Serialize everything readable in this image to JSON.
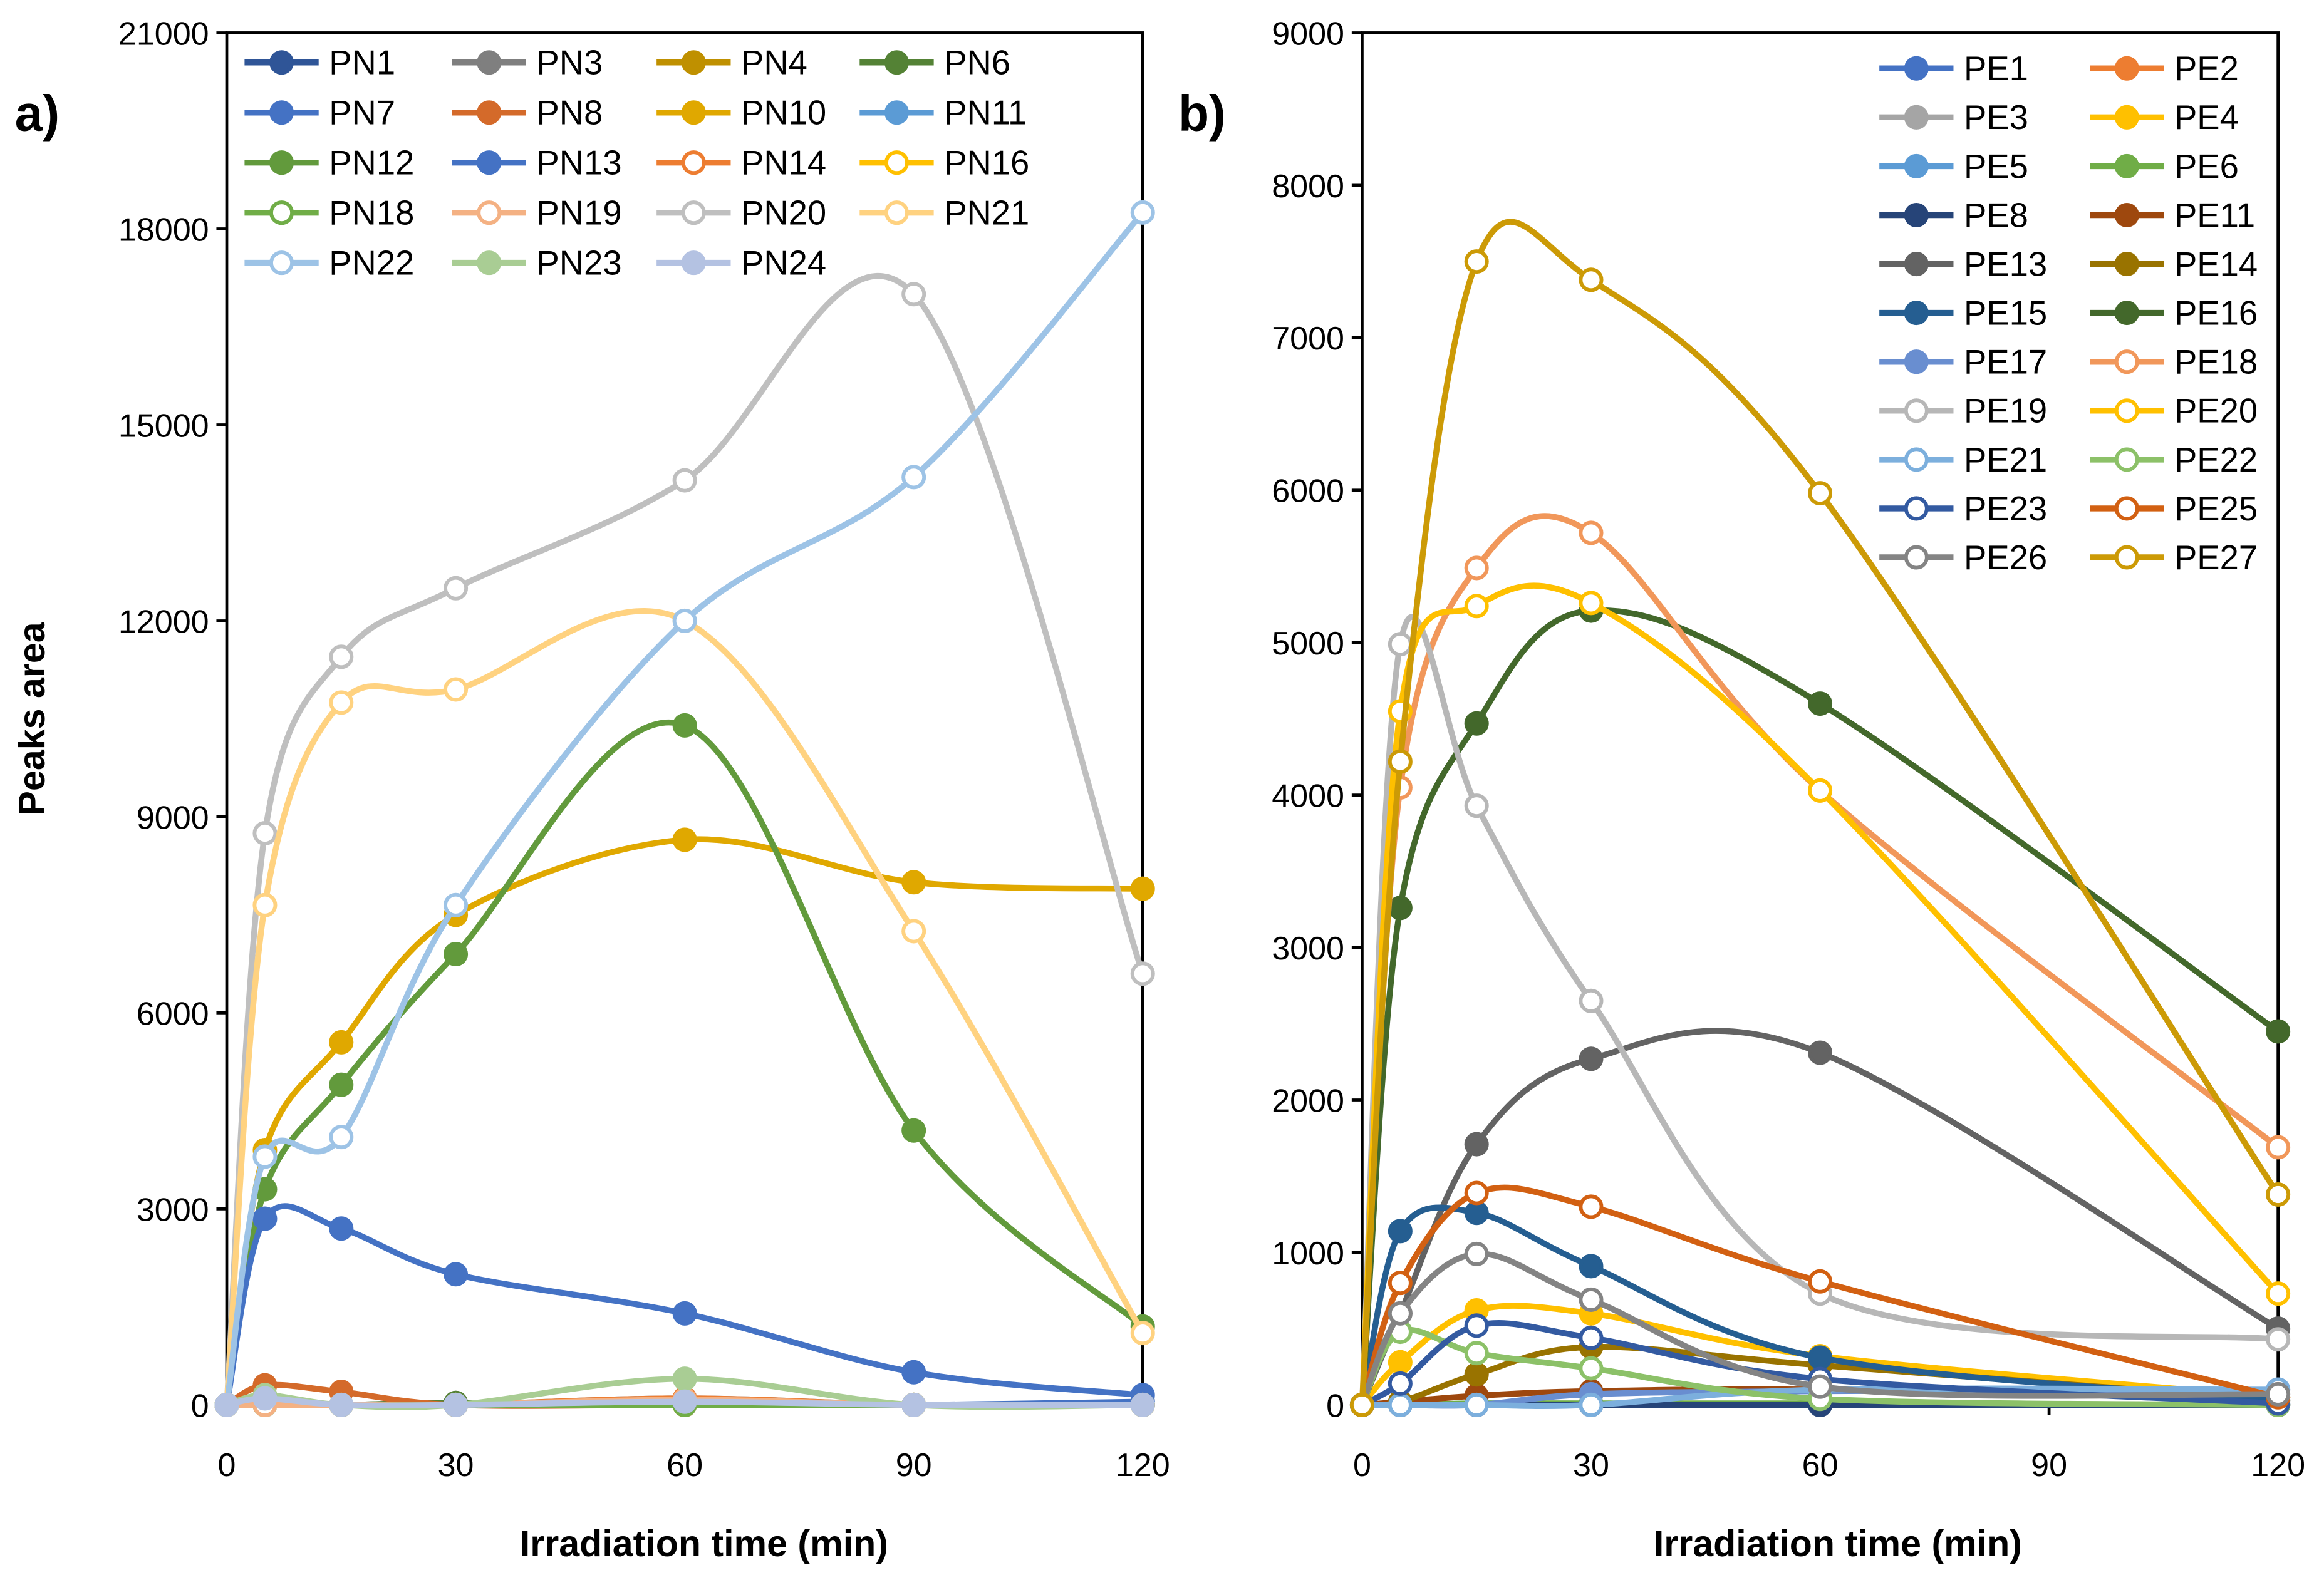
{
  "chart_data": [
    {
      "type": "line",
      "panel_label": "a)",
      "xlabel": "Irradiation time (min)",
      "ylabel": "Peaks area",
      "xlim": [
        0,
        120
      ],
      "ylim": [
        0,
        21000
      ],
      "xticks": [
        0,
        30,
        60,
        90,
        120
      ],
      "yticks": [
        0,
        3000,
        6000,
        9000,
        12000,
        15000,
        18000,
        21000
      ],
      "legend_position": "top",
      "legend_columns": 4,
      "x": [
        0,
        5,
        15,
        30,
        60,
        90,
        120
      ],
      "series": [
        {
          "name": "PN1",
          "color": "#2F5597",
          "marker": "filled",
          "values": [
            0,
            0,
            0,
            0,
            0,
            0,
            0
          ]
        },
        {
          "name": "PN3",
          "color": "#7F7F7F",
          "marker": "filled",
          "values": [
            0,
            0,
            0,
            30,
            0,
            0,
            0
          ]
        },
        {
          "name": "PN4",
          "color": "#BF9000",
          "marker": "filled",
          "values": [
            0,
            0,
            0,
            0,
            0,
            0,
            0
          ]
        },
        {
          "name": "PN6",
          "color": "#548235",
          "marker": "filled",
          "values": [
            0,
            0,
            0,
            30,
            0,
            0,
            0
          ]
        },
        {
          "name": "PN7",
          "color": "#4472C4",
          "marker": "filled",
          "values": [
            0,
            0,
            0,
            0,
            0,
            0,
            50
          ]
        },
        {
          "name": "PN8",
          "color": "#D46A2A",
          "marker": "filled",
          "values": [
            0,
            300,
            200,
            0,
            0,
            0,
            0
          ]
        },
        {
          "name": "PN10",
          "color": "#E0A800",
          "marker": "filled",
          "values": [
            0,
            3900,
            5550,
            7500,
            8650,
            8000,
            7900
          ]
        },
        {
          "name": "PN11",
          "color": "#5B9BD5",
          "marker": "filled",
          "values": [
            0,
            0,
            0,
            0,
            100,
            0,
            0
          ]
        },
        {
          "name": "PN12",
          "color": "#629A3C",
          "marker": "filled",
          "values": [
            0,
            3300,
            4900,
            6900,
            10400,
            4200,
            1200
          ]
        },
        {
          "name": "PN13",
          "color": "#4472C4",
          "marker": "filled",
          "values": [
            0,
            2850,
            2700,
            2000,
            1400,
            500,
            150
          ]
        },
        {
          "name": "PN14",
          "color": "#ED7D31",
          "marker": "open",
          "values": [
            0,
            0,
            0,
            0,
            100,
            0,
            0
          ]
        },
        {
          "name": "PN16",
          "color": "#FFC000",
          "marker": "open",
          "values": [
            0,
            0,
            0,
            0,
            0,
            0,
            0
          ]
        },
        {
          "name": "PN18",
          "color": "#70AD47",
          "marker": "open",
          "values": [
            0,
            0,
            0,
            0,
            0,
            0,
            0
          ]
        },
        {
          "name": "PN19",
          "color": "#F4B183",
          "marker": "open",
          "values": [
            0,
            0,
            0,
            0,
            80,
            0,
            0
          ]
        },
        {
          "name": "PN20",
          "color": "#BFBFBF",
          "marker": "open",
          "values": [
            0,
            8750,
            11450,
            12500,
            14150,
            17000,
            6600
          ]
        },
        {
          "name": "PN21",
          "color": "#FFD280",
          "marker": "open",
          "values": [
            0,
            7650,
            10750,
            10950,
            12000,
            7250,
            1100
          ]
        },
        {
          "name": "PN22",
          "color": "#9DC3E6",
          "marker": "open",
          "values": [
            0,
            3800,
            4100,
            7650,
            12000,
            14200,
            18250
          ]
        },
        {
          "name": "PN23",
          "color": "#A9CD94",
          "marker": "filled",
          "values": [
            0,
            150,
            0,
            0,
            400,
            0,
            0
          ]
        },
        {
          "name": "PN24",
          "color": "#B4C2E2",
          "marker": "filled",
          "values": [
            0,
            100,
            0,
            0,
            50,
            0,
            0
          ]
        }
      ]
    },
    {
      "type": "line",
      "panel_label": "b)",
      "xlabel": "Irradiation time (min)",
      "ylabel": "",
      "xlim": [
        0,
        120
      ],
      "ylim": [
        0,
        9000
      ],
      "xticks": [
        0,
        30,
        60,
        90,
        120
      ],
      "yticks": [
        0,
        1000,
        2000,
        3000,
        4000,
        5000,
        6000,
        7000,
        8000,
        9000
      ],
      "legend_position": "top-right",
      "legend_columns": 2,
      "x": [
        0,
        5,
        15,
        30,
        60,
        120
      ],
      "series": [
        {
          "name": "PE1",
          "color": "#4472C4",
          "marker": "filled",
          "values": [
            0,
            0,
            0,
            0,
            0,
            0
          ]
        },
        {
          "name": "PE2",
          "color": "#ED7D31",
          "marker": "filled",
          "values": [
            0,
            0,
            0,
            0,
            0,
            0
          ]
        },
        {
          "name": "PE3",
          "color": "#A5A5A5",
          "marker": "filled",
          "values": [
            0,
            0,
            0,
            0,
            0,
            0
          ]
        },
        {
          "name": "PE4",
          "color": "#FFC000",
          "marker": "filled",
          "values": [
            0,
            280,
            620,
            600,
            320,
            50
          ]
        },
        {
          "name": "PE5",
          "color": "#5B9BD5",
          "marker": "filled",
          "values": [
            0,
            0,
            0,
            0,
            0,
            0
          ]
        },
        {
          "name": "PE6",
          "color": "#70AD47",
          "marker": "filled",
          "values": [
            0,
            0,
            10,
            10,
            10,
            0
          ]
        },
        {
          "name": "PE8",
          "color": "#264478",
          "marker": "filled",
          "values": [
            0,
            0,
            0,
            0,
            0,
            0
          ]
        },
        {
          "name": "PE11",
          "color": "#9E480E",
          "marker": "filled",
          "values": [
            0,
            20,
            60,
            90,
            100,
            50
          ]
        },
        {
          "name": "PE13",
          "color": "#636363",
          "marker": "filled",
          "values": [
            0,
            600,
            1710,
            2270,
            2310,
            500
          ]
        },
        {
          "name": "PE14",
          "color": "#997300",
          "marker": "filled",
          "values": [
            0,
            20,
            200,
            380,
            260,
            30
          ]
        },
        {
          "name": "PE15",
          "color": "#255E91",
          "marker": "filled",
          "values": [
            0,
            1140,
            1260,
            910,
            310,
            30
          ]
        },
        {
          "name": "PE16",
          "color": "#43682B",
          "marker": "filled",
          "values": [
            0,
            3260,
            4470,
            5210,
            4600,
            2450
          ]
        },
        {
          "name": "PE17",
          "color": "#698ED0",
          "marker": "filled",
          "values": [
            0,
            0,
            0,
            70,
            90,
            100
          ]
        },
        {
          "name": "PE18",
          "color": "#F1975A",
          "marker": "open",
          "values": [
            0,
            4050,
            5490,
            5720,
            4030,
            1690
          ]
        },
        {
          "name": "PE19",
          "color": "#B7B7B7",
          "marker": "open",
          "values": [
            0,
            4990,
            3930,
            2650,
            730,
            430
          ]
        },
        {
          "name": "PE20",
          "color": "#FFC000",
          "marker": "open",
          "values": [
            0,
            4550,
            5240,
            5260,
            4030,
            730
          ]
        },
        {
          "name": "PE21",
          "color": "#7CAFDD",
          "marker": "open",
          "values": [
            0,
            0,
            0,
            0,
            100,
            100
          ]
        },
        {
          "name": "PE22",
          "color": "#8CC168",
          "marker": "open",
          "values": [
            0,
            480,
            340,
            240,
            40,
            0
          ]
        },
        {
          "name": "PE23",
          "color": "#335AA1",
          "marker": "open",
          "values": [
            0,
            140,
            520,
            440,
            170,
            10
          ]
        },
        {
          "name": "PE25",
          "color": "#D26012",
          "marker": "open",
          "values": [
            0,
            800,
            1390,
            1300,
            810,
            50
          ]
        },
        {
          "name": "PE26",
          "color": "#848484",
          "marker": "open",
          "values": [
            0,
            600,
            990,
            690,
            120,
            70
          ]
        },
        {
          "name": "PE27",
          "color": "#CC9A06",
          "marker": "open",
          "values": [
            0,
            4220,
            7500,
            7380,
            5980,
            1380
          ]
        }
      ]
    }
  ]
}
